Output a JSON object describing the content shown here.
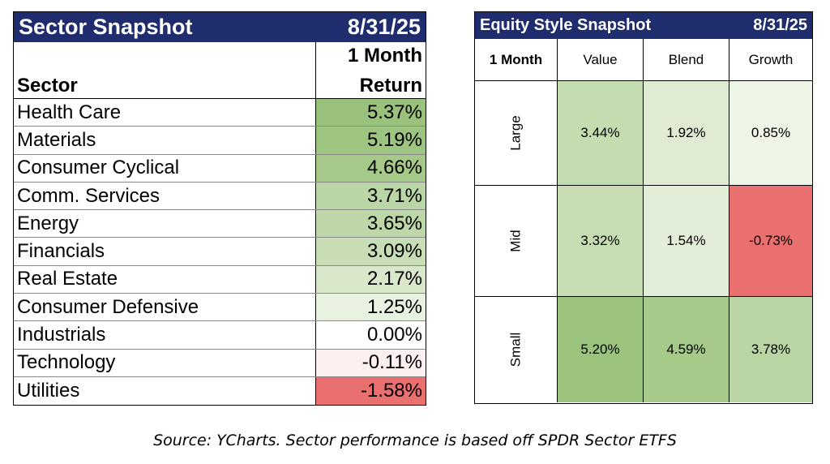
{
  "chart_data": [
    {
      "type": "table",
      "title": "Sector Snapshot",
      "date": "8/31/25",
      "column_headers": {
        "sector": "Sector",
        "return_line1": "1 Month",
        "return_line2": "Return"
      },
      "rows": [
        {
          "sector": "Health Care",
          "value": 5.37,
          "label": "5.37%",
          "color": "#9ac27d"
        },
        {
          "sector": "Materials",
          "value": 5.19,
          "label": "5.19%",
          "color": "#9ec481"
        },
        {
          "sector": "Consumer Cyclical",
          "value": 4.66,
          "label": "4.66%",
          "color": "#a6c98a"
        },
        {
          "sector": "Comm. Services",
          "value": 3.71,
          "label": "3.71%",
          "color": "#bbd6a6"
        },
        {
          "sector": "Energy",
          "value": 3.65,
          "label": "3.65%",
          "color": "#bdd7a8"
        },
        {
          "sector": "Financials",
          "value": 3.09,
          "label": "3.09%",
          "color": "#c8ddb5"
        },
        {
          "sector": "Real Estate",
          "value": 2.17,
          "label": "2.17%",
          "color": "#d9e7cb"
        },
        {
          "sector": "Consumer Defensive",
          "value": 1.25,
          "label": "1.25%",
          "color": "#e9f1e0"
        },
        {
          "sector": "Industrials",
          "value": 0.0,
          "label": "0.00%",
          "color": "#ffffff"
        },
        {
          "sector": "Technology",
          "value": -0.11,
          "label": "-0.11%",
          "color": "#fcefef"
        },
        {
          "sector": "Utilities",
          "value": -1.58,
          "label": "-1.58%",
          "color": "#ea6f6f"
        }
      ]
    },
    {
      "type": "heatmap",
      "title": "Equity Style Snapshot",
      "date": "8/31/25",
      "corner_label": "1 Month",
      "columns": [
        "Value",
        "Blend",
        "Growth"
      ],
      "rows": [
        "Large",
        "Mid",
        "Small"
      ],
      "values": [
        [
          3.44,
          1.92,
          0.85
        ],
        [
          3.32,
          1.54,
          -0.73
        ],
        [
          5.2,
          4.59,
          3.78
        ]
      ],
      "labels": [
        [
          "3.44%",
          "1.92%",
          "0.85%"
        ],
        [
          "3.32%",
          "1.54%",
          "-0.73%"
        ],
        [
          "5.20%",
          "4.59%",
          "3.78%"
        ]
      ],
      "colors": [
        [
          "#c3dcb0",
          "#dfebd3",
          "#eef5e7"
        ],
        [
          "#c6ddb3",
          "#e3eed9",
          "#ea6f6f"
        ],
        [
          "#9bc37e",
          "#a7ca8b",
          "#b9d5a3"
        ]
      ]
    }
  ],
  "footer": {
    "source": "Source: YCharts. Sector performance is based off SPDR Sector ETFS"
  }
}
